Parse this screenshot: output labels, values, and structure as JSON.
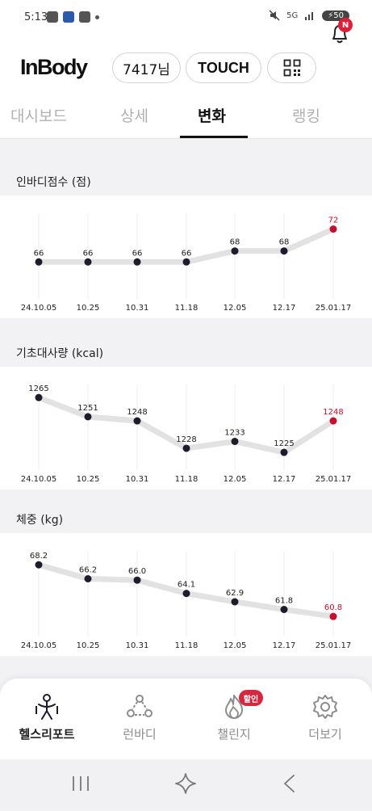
{
  "status_bar": {
    "time": "5:13",
    "network": "5G",
    "battery": "50"
  },
  "header": {
    "logo": "InBody",
    "user_label": "7417님",
    "touch_label": "TOUCH",
    "notification_badge": "N"
  },
  "tabs": [
    {
      "label": "대시보드",
      "active": false
    },
    {
      "label": "상세",
      "active": false
    },
    {
      "label": "변화",
      "active": true
    },
    {
      "label": "랭킹",
      "active": false
    }
  ],
  "chart_data": [
    {
      "type": "line",
      "title": "인바디점수 (점)",
      "categories": [
        "24.10.05",
        "10.25",
        "10.31",
        "11.18",
        "12.05",
        "12.17",
        "25.01.17"
      ],
      "series": [
        {
          "values": [
            66,
            66,
            66,
            66,
            68,
            68,
            72
          ]
        }
      ],
      "value_labels": [
        "66",
        "66",
        "66",
        "66",
        "68",
        "68",
        "72"
      ],
      "highlight_last": true,
      "highlight_color": "#c8102e",
      "ylim": [
        60,
        74
      ]
    },
    {
      "type": "line",
      "title": "기초대사량 (kcal)",
      "categories": [
        "24.10.05",
        "10.25",
        "10.31",
        "11.18",
        "12.05",
        "12.17",
        "25.01.17"
      ],
      "series": [
        {
          "values": [
            1265,
            1251,
            1248,
            1228,
            1233,
            1225,
            1248
          ]
        }
      ],
      "value_labels": [
        "1265",
        "1251",
        "1248",
        "1228",
        "1233",
        "1225",
        "1248"
      ],
      "highlight_last": true,
      "highlight_color": "#c8102e",
      "ylim": [
        1215,
        1271
      ]
    },
    {
      "type": "line",
      "title": "체중 (kg)",
      "categories": [
        "24.10.05",
        "10.25",
        "10.31",
        "11.18",
        "12.05",
        "12.17",
        "25.01.17"
      ],
      "series": [
        {
          "values": [
            68.2,
            66.2,
            66.0,
            64.1,
            62.9,
            61.8,
            60.8
          ]
        }
      ],
      "value_labels": [
        "68.2",
        "66.2",
        "66.0",
        "64.1",
        "62.9",
        "61.8",
        "60.8"
      ],
      "highlight_last": true,
      "highlight_color": "#c8102e",
      "ylim": [
        58.5,
        69.5
      ]
    }
  ],
  "bottom_nav": [
    {
      "label": "헬스리포트",
      "icon": "person-icon",
      "active": true
    },
    {
      "label": "런바디",
      "icon": "run-icon",
      "active": false
    },
    {
      "label": "챌린지",
      "icon": "flame-icon",
      "active": false
    },
    {
      "label": "더보기",
      "icon": "gear-icon",
      "active": false
    }
  ],
  "challenge_badge": "할인",
  "colors": {
    "accent_red": "#c8102e",
    "badge_red": "#e21d37",
    "line_gray": "#e2e2e2",
    "point_dark": "#1c1c2c"
  }
}
